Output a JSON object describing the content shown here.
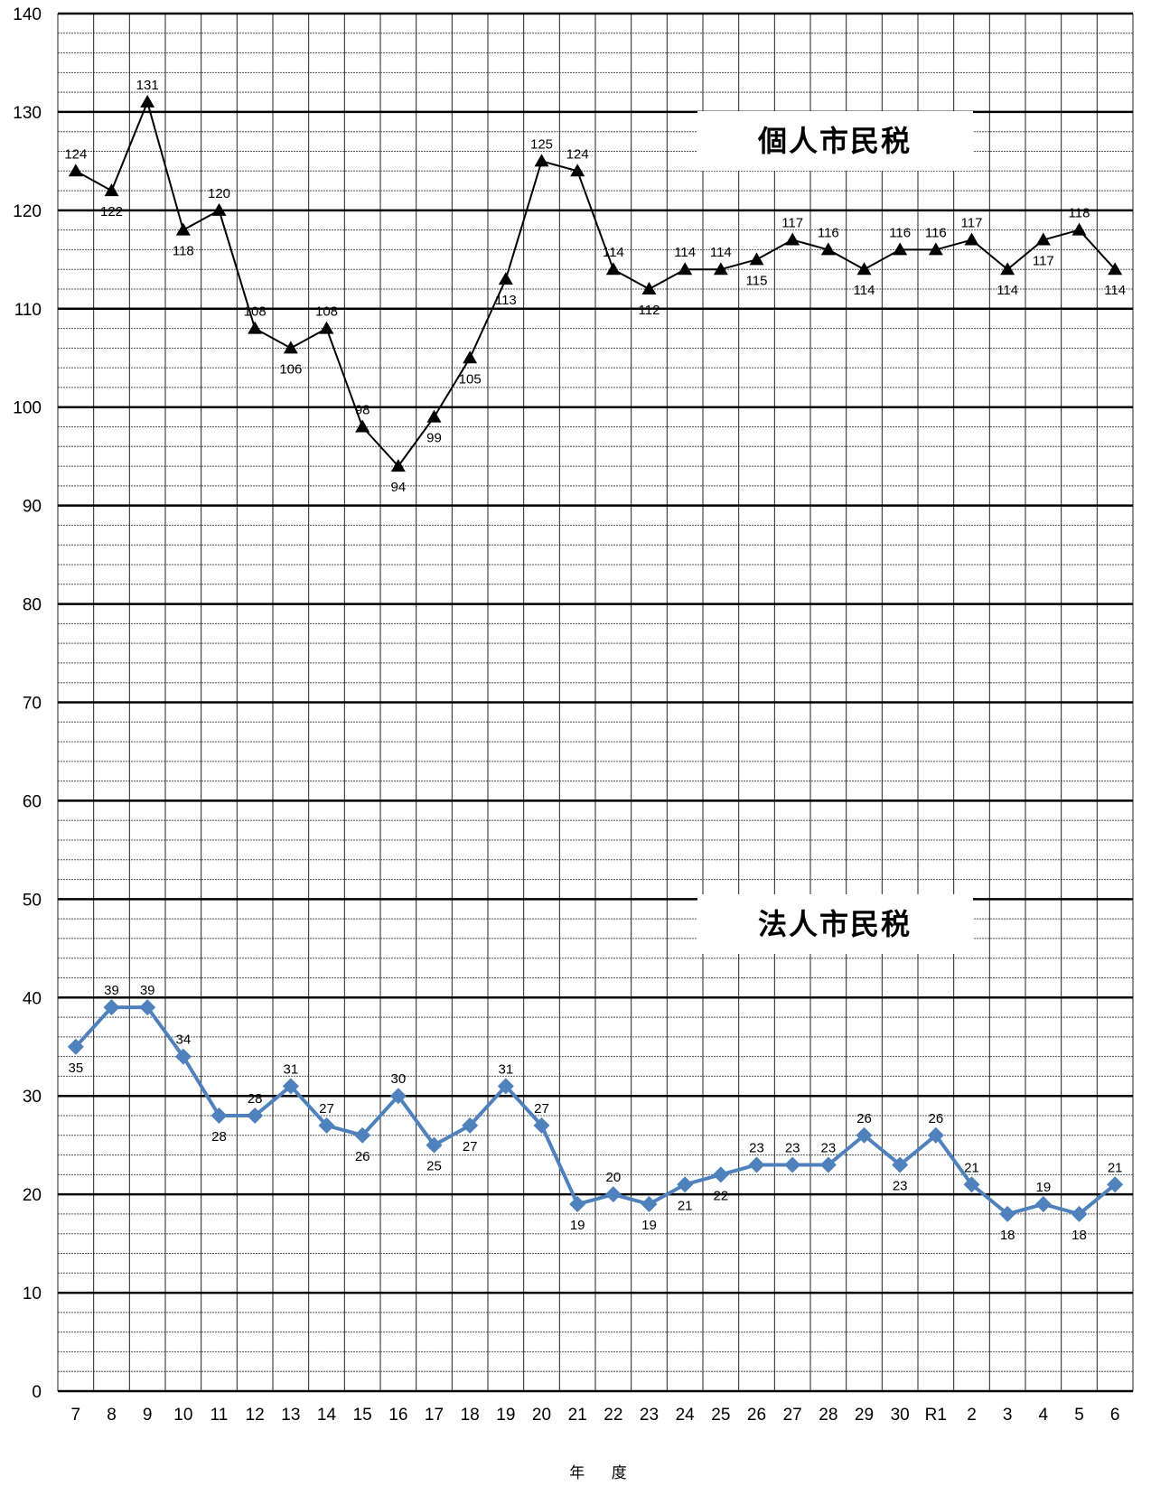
{
  "chart_data": {
    "type": "line",
    "xlabel": "年 度",
    "ylabel": "",
    "ylim": [
      0,
      140
    ],
    "y_major_step": 10,
    "y_minor_step": 2,
    "grid": true,
    "categories": [
      "7",
      "8",
      "9",
      "10",
      "11",
      "12",
      "13",
      "14",
      "15",
      "16",
      "17",
      "18",
      "19",
      "20",
      "21",
      "22",
      "23",
      "24",
      "25",
      "26",
      "27",
      "28",
      "29",
      "30",
      "R1",
      "2",
      "3",
      "4",
      "5",
      "6"
    ],
    "series": [
      {
        "name": "個人市民税",
        "color": "#000000",
        "marker": "triangle",
        "values": [
          124,
          122,
          131,
          118,
          120,
          108,
          106,
          108,
          98,
          94,
          99,
          105,
          113,
          125,
          124,
          114,
          112,
          114,
          114,
          115,
          117,
          116,
          114,
          116,
          116,
          117,
          114,
          117,
          118,
          114
        ]
      },
      {
        "name": "法人市民税",
        "color": "#4f81bd",
        "marker": "diamond",
        "values": [
          35,
          39,
          39,
          34,
          28,
          28,
          31,
          27,
          26,
          30,
          25,
          27,
          31,
          27,
          19,
          20,
          19,
          21,
          22,
          23,
          23,
          23,
          26,
          23,
          26,
          21,
          18,
          19,
          18,
          21
        ]
      }
    ]
  }
}
